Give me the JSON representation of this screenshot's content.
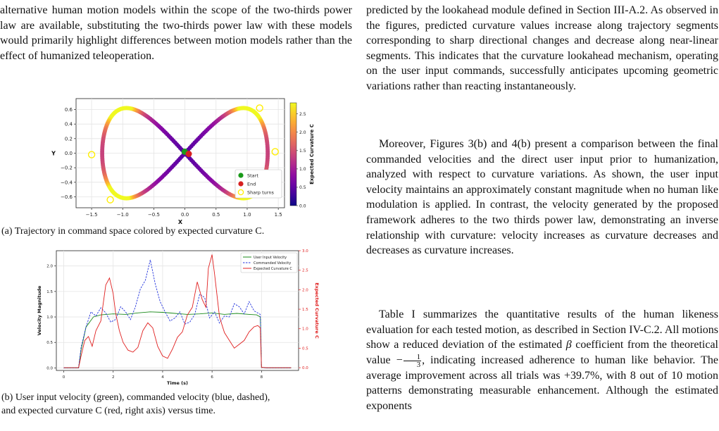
{
  "left": {
    "paragraph": "alternative human motion models within the scope of the two-thirds power law are available, substituting the two-thirds power law with these models would primarily highlight differences between motion models rather than the effect of humanized teleoperation.",
    "caption_a": "(a) Trajectory in command space colored by expected curvature C.",
    "caption_b_line1": "(b) User input velocity (green), commanded velocity (blue, dashed),",
    "caption_b_line2": "and expected curvature C (red, right axis) versus time."
  },
  "right": {
    "para1": "predicted by the lookahead module defined in Section III-A.2. As observed in the figures, predicted curvature values increase along trajectory segments corresponding to sharp directional changes and decrease along near-linear segments. This indicates that the curvature lookahead mechanism, operating on the user input commands, successfully anticipates upcoming geometric variations rather than reacting instantaneously.",
    "para2": "Moreover, Figures 3(b) and 4(b) present a comparison between the final commanded velocities and the direct user input prior to humanization, analyzed with respect to curvature variations. As shown, the user input velocity maintains an approximately constant magnitude when no human like modulation is applied. In contrast, the velocity generated by the proposed framework adheres to the two thirds power law, demonstrating an inverse relationship with curvature: velocity increases as curvature decreases and decreases as curvature increases.",
    "para3_a": "Table I summarizes the quantitative results of the human likeness evaluation for each tested motion, as described in Section IV-C.2. All motions show a reduced deviation of the estimated ",
    "beta": "β",
    "para3_b": " coefficient from the theoretical value ",
    "frac_sign": "−",
    "frac_num": "1",
    "frac_den": "3",
    "para3_c": ", indicating increased adherence to human like behavior. The average improvement across all trials was +39.7%, with 8 out of 10 motion patterns demonstrating measurable enhancement. Although the estimated exponents"
  },
  "chart_data": [
    {
      "type": "scatter",
      "xlabel": "X",
      "ylabel": "Y",
      "xlim": [
        -1.75,
        1.6
      ],
      "ylim": [
        -0.75,
        0.75
      ],
      "xticks": [
        "−1.5",
        "−1.0",
        "−0.5",
        "0.0",
        "0.5",
        "1.0",
        "1.5"
      ],
      "xtick_values": [
        -1.5,
        -1.0,
        -0.5,
        0.0,
        0.5,
        1.0,
        1.5
      ],
      "yticks": [
        "0.6",
        "0.4",
        "0.2",
        "0.0",
        "−0.2",
        "−0.4",
        "−0.6"
      ],
      "ytick_values": [
        0.6,
        0.4,
        0.2,
        0.0,
        -0.2,
        -0.4,
        -0.6
      ],
      "grid": true,
      "colorbar_label": "Expected Curvature C",
      "colorbar_ticks": [
        "2.5",
        "2.0",
        "1.5",
        "1.0",
        "0.5",
        "0.0"
      ],
      "colorbar_tick_values": [
        2.5,
        2.0,
        1.5,
        1.0,
        0.5,
        0.0
      ],
      "colorbar_range": [
        0,
        2.8
      ],
      "trajectory": {
        "amplitude_x": 1.4,
        "amplitude_y": 0.62,
        "shape": "lemniscate"
      },
      "start_point": [
        0.02,
        0.02
      ],
      "end_point": [
        0.05,
        0.0
      ],
      "sharp_turns": [
        [
          -1.5,
          -0.02
        ],
        [
          -1.2,
          -0.64
        ],
        [
          1.2,
          0.62
        ],
        [
          1.45,
          0.02
        ]
      ],
      "legend": [
        {
          "label": "Start",
          "color": "#1a9a1a"
        },
        {
          "label": "End",
          "color": "#d62020"
        },
        {
          "label": "Sharp turns",
          "color": "#ffee00"
        }
      ],
      "legend_position": "lower-right"
    },
    {
      "type": "line",
      "xlabel": "Time (s)",
      "ylabel": "Velocity Magnitude",
      "y2label": "Expected Curvature C",
      "xlim": [
        -0.3,
        9.5
      ],
      "ylim": [
        -0.05,
        2.3
      ],
      "y2lim": [
        -0.07,
        3.0
      ],
      "xticks": [
        "0",
        "2",
        "4",
        "6",
        "8"
      ],
      "xtick_values": [
        0,
        2,
        4,
        6,
        8
      ],
      "yticks": [
        "0.0",
        "0.5",
        "1.0",
        "1.5",
        "2.0"
      ],
      "ytick_values": [
        0,
        0.5,
        1.0,
        1.5,
        2.0
      ],
      "y2ticks": [
        "0.0",
        "0.5",
        "1.0",
        "1.5",
        "2.0",
        "2.5",
        "3.0"
      ],
      "y2tick_values": [
        0,
        0.5,
        1.0,
        1.5,
        2.0,
        2.5,
        3.0
      ],
      "grid": true,
      "legend_position": "upper-right",
      "series": [
        {
          "name": "User Input Velocity",
          "color": "#1a8a1a",
          "dashed": false,
          "axis": "left",
          "x": [
            0,
            0.6,
            0.7,
            0.9,
            1.2,
            1.5,
            2,
            2.5,
            3,
            3.5,
            4,
            4.5,
            5,
            5.5,
            6,
            6.5,
            7,
            7.5,
            7.8,
            7.95,
            8.0,
            8.2,
            9.2
          ],
          "y": [
            0,
            0,
            0.35,
            0.8,
            1.0,
            1.04,
            1.06,
            1.05,
            1.08,
            1.1,
            1.09,
            1.07,
            1.05,
            1.06,
            1.08,
            1.05,
            1.07,
            1.05,
            1.04,
            1.0,
            0.01,
            0,
            0
          ]
        },
        {
          "name": "Commanded Velocity",
          "color": "#2233dd",
          "dashed": true,
          "axis": "left",
          "x": [
            0,
            0.6,
            0.7,
            0.9,
            1.1,
            1.3,
            1.5,
            1.7,
            1.9,
            2.1,
            2.3,
            2.5,
            2.7,
            2.9,
            3.1,
            3.3,
            3.5,
            3.7,
            3.9,
            4.1,
            4.3,
            4.5,
            4.7,
            4.9,
            5.1,
            5.3,
            5.5,
            5.7,
            5.9,
            6.1,
            6.3,
            6.5,
            6.7,
            6.9,
            7.1,
            7.3,
            7.5,
            7.7,
            7.95,
            8.0,
            8.2,
            9.2
          ],
          "y": [
            0,
            0,
            0.4,
            0.8,
            1.1,
            1.02,
            1.18,
            1.08,
            0.9,
            0.95,
            1.2,
            1.1,
            0.95,
            1.2,
            1.55,
            1.72,
            2.12,
            1.65,
            1.3,
            1.1,
            0.92,
            0.98,
            1.1,
            0.86,
            0.9,
            1.05,
            1.45,
            1.38,
            0.98,
            1.1,
            0.88,
            1.02,
            1.0,
            1.26,
            1.2,
            1.06,
            1.3,
            1.12,
            1.05,
            0.01,
            0,
            0
          ]
        },
        {
          "name": "Expected Curvature C",
          "color": "#e02020",
          "dashed": false,
          "axis": "right",
          "x": [
            0,
            0.6,
            0.7,
            0.85,
            1.0,
            1.15,
            1.3,
            1.5,
            1.7,
            1.85,
            2.0,
            2.1,
            2.25,
            2.4,
            2.6,
            2.8,
            3.0,
            3.2,
            3.4,
            3.6,
            3.8,
            4.0,
            4.2,
            4.4,
            4.6,
            4.8,
            5.0,
            5.2,
            5.4,
            5.6,
            5.75,
            5.85,
            6.0,
            6.1,
            6.3,
            6.5,
            6.7,
            6.9,
            7.1,
            7.3,
            7.5,
            7.7,
            7.85,
            7.95,
            8.0,
            8.2,
            9.2
          ],
          "y": [
            0,
            0,
            0.3,
            0.7,
            0.8,
            0.55,
            0.95,
            1.2,
            2.12,
            2.3,
            1.9,
            1.4,
            0.95,
            0.65,
            0.45,
            0.4,
            0.52,
            0.95,
            1.15,
            1.02,
            0.55,
            0.3,
            0.24,
            0.48,
            0.78,
            0.92,
            1.35,
            1.55,
            2.2,
            1.75,
            1.55,
            2.55,
            2.9,
            2.4,
            1.3,
            0.9,
            0.7,
            0.5,
            0.6,
            0.7,
            0.92,
            1.05,
            1.08,
            1.02,
            0.01,
            0,
            0
          ]
        }
      ]
    }
  ]
}
